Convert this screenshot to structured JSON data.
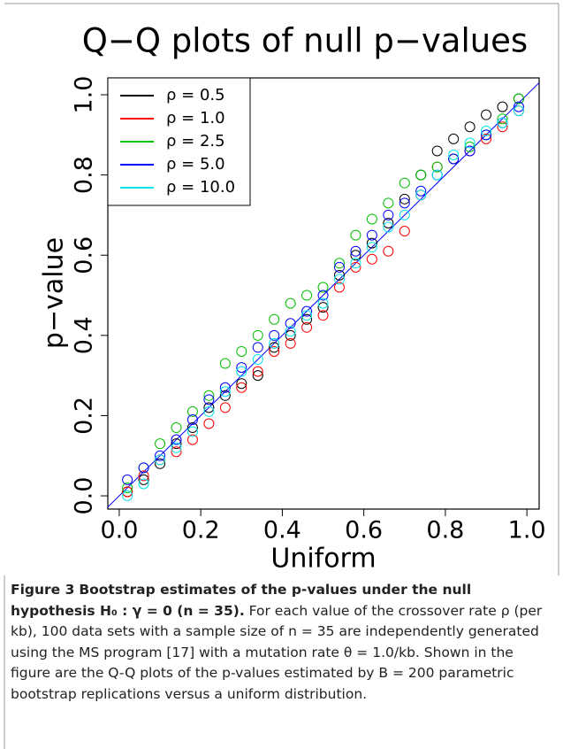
{
  "chart_data": {
    "type": "scatter",
    "title": "Q−Q plots of null p−values",
    "x_label": "Uniform",
    "y_label": "p−value",
    "x": [
      0.02,
      0.06,
      0.1,
      0.14,
      0.18,
      0.22,
      0.26,
      0.3,
      0.34,
      0.38,
      0.42,
      0.46,
      0.5,
      0.54,
      0.58,
      0.62,
      0.66,
      0.7,
      0.74,
      0.78,
      0.82,
      0.86,
      0.9,
      0.94,
      0.98
    ],
    "series": [
      {
        "name": "ρ = 0.5",
        "color": "#000000",
        "values": [
          0.01,
          0.04,
          0.08,
          0.13,
          0.17,
          0.22,
          0.25,
          0.28,
          0.3,
          0.37,
          0.4,
          0.44,
          0.47,
          0.55,
          0.6,
          0.63,
          0.68,
          0.74,
          0.8,
          0.86,
          0.89,
          0.92,
          0.95,
          0.97,
          0.99
        ]
      },
      {
        "name": "ρ = 1.0",
        "color": "#ff0000",
        "values": [
          0.01,
          0.05,
          0.09,
          0.11,
          0.14,
          0.18,
          0.22,
          0.27,
          0.31,
          0.36,
          0.38,
          0.42,
          0.45,
          0.52,
          0.57,
          0.59,
          0.61,
          0.66,
          0.75,
          0.82,
          0.84,
          0.86,
          0.89,
          0.92,
          0.96
        ]
      },
      {
        "name": "ρ = 2.5",
        "color": "#00c000",
        "values": [
          0.02,
          0.07,
          0.13,
          0.17,
          0.21,
          0.25,
          0.33,
          0.36,
          0.4,
          0.44,
          0.48,
          0.5,
          0.52,
          0.58,
          0.65,
          0.69,
          0.73,
          0.78,
          0.8,
          0.82,
          0.84,
          0.87,
          0.9,
          0.94,
          0.99
        ]
      },
      {
        "name": "ρ = 5.0",
        "color": "#0000ff",
        "values": [
          0.04,
          0.07,
          0.1,
          0.14,
          0.19,
          0.24,
          0.27,
          0.32,
          0.37,
          0.4,
          0.43,
          0.46,
          0.5,
          0.57,
          0.61,
          0.65,
          0.7,
          0.73,
          0.76,
          0.8,
          0.84,
          0.86,
          0.9,
          0.93,
          0.97
        ]
      },
      {
        "name": "ρ = 10.0",
        "color": "#00e5ee",
        "values": [
          0.0,
          0.03,
          0.09,
          0.12,
          0.16,
          0.21,
          0.26,
          0.31,
          0.34,
          0.38,
          0.41,
          0.45,
          0.48,
          0.54,
          0.58,
          0.62,
          0.67,
          0.7,
          0.75,
          0.8,
          0.85,
          0.88,
          0.91,
          0.93,
          0.96
        ]
      }
    ],
    "xlim": [
      -0.028,
      1.03
    ],
    "ylim": [
      -0.033,
      1.042
    ],
    "xticks": [
      {
        "value": 0,
        "label": "0.0"
      },
      0.2,
      0.4,
      0.6,
      0.8,
      {
        "value": 1,
        "label": "1.0"
      }
    ],
    "yticks": [
      {
        "value": 0,
        "label": "0.0"
      },
      0.2,
      0.4,
      0.6,
      0.8,
      {
        "value": 1,
        "label": "1.0"
      }
    ],
    "reference_line_color": "#0000ff",
    "legend": "top-left"
  },
  "caption": {
    "label": "Figure 3",
    "title": "Bootstrap estimates of the p-values under the null hypothesis H₀ : γ = 0 (n = 35).",
    "text": "For each value of the crossover rate ρ (per kb), 100 data sets with a sample size of n = 35 are independently generated using the MS program [17] with a mutation rate θ = 1.0/kb. Shown in the figure are the Q-Q plots of the p-values estimated by B = 200 parametric bootstrap replications versus a uniform distribution."
  }
}
